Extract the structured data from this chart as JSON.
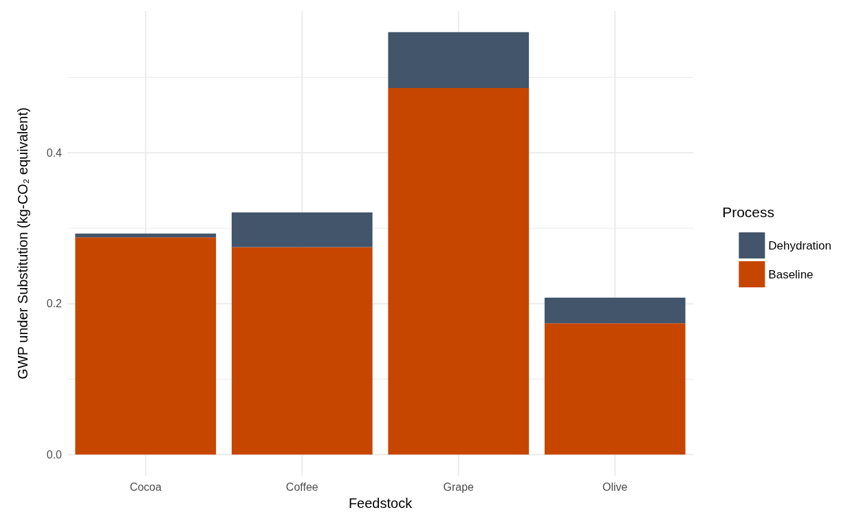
{
  "chart_data": {
    "type": "bar",
    "stacked": true,
    "xlabel": "Feedstock",
    "ylabel": "GWP under Substitution (kg-CO₂ equivalent)",
    "legend_title": "Process",
    "categories": [
      "Cocoa",
      "Coffee",
      "Grape",
      "Olive"
    ],
    "series": [
      {
        "name": "Baseline",
        "color": "#c64600",
        "values": [
          0.288,
          0.275,
          0.486,
          0.174
        ]
      },
      {
        "name": "Dehydration",
        "color": "#42556b",
        "values": [
          0.005,
          0.046,
          0.074,
          0.034
        ]
      }
    ],
    "ylim": [
      -0.028,
      0.588
    ],
    "yticks": [
      {
        "value": 0,
        "label": "0.0"
      },
      {
        "value": 0.1,
        "label": null
      },
      {
        "value": 0.2,
        "label": "0.2"
      },
      {
        "value": 0.3,
        "label": null
      },
      {
        "value": 0.4,
        "label": "0.4"
      },
      {
        "value": 0.5,
        "label": null
      }
    ],
    "grid": true,
    "legend": "right"
  }
}
